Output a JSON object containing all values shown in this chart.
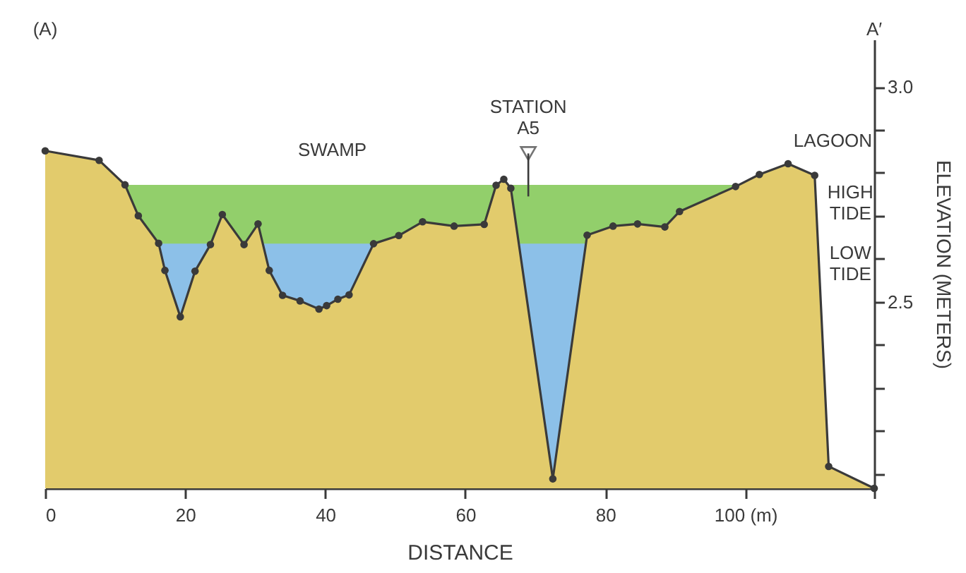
{
  "chart_data": {
    "type": "area",
    "xlabel": "DISTANCE",
    "ylabel": "ELEVATION  (METERS)",
    "series": [
      {
        "color": "#92cf6b",
        "x": [
          11.4,
          98.6
        ],
        "values": [
          2.772,
          2.772
        ]
      },
      {
        "color": "#8cc0e8",
        "x": [
          16.2,
          77.4
        ],
        "values": [
          2.635,
          2.635
        ]
      },
      {
        "color": "#e2cb6c",
        "marker": "circle",
        "x": [
          0,
          7.7,
          11.4,
          13.3,
          16.2,
          17.1,
          19.3,
          21.4,
          23.6,
          25.3,
          28.4,
          30.4,
          32.0,
          33.9,
          36.4,
          39.1,
          40.2,
          41.8,
          43.4,
          46.9,
          50.5,
          53.9,
          58.4,
          62.7,
          64.4,
          65.5,
          66.5,
          72.5,
          77.4,
          81.1,
          84.6,
          88.5,
          90.6,
          98.6,
          102.0,
          106.1,
          109.9,
          111.9,
          118.4
        ],
        "values": [
          2.851,
          2.829,
          2.772,
          2.7,
          2.636,
          2.573,
          2.465,
          2.571,
          2.633,
          2.703,
          2.633,
          2.681,
          2.573,
          2.515,
          2.502,
          2.483,
          2.491,
          2.506,
          2.516,
          2.635,
          2.654,
          2.686,
          2.676,
          2.68,
          2.771,
          2.785,
          2.764,
          2.088,
          2.655,
          2.676,
          2.681,
          2.674,
          2.71,
          2.768,
          2.796,
          2.821,
          2.794,
          2.117,
          2.066
        ]
      }
    ],
    "xlim": [
      0,
      118.4
    ],
    "ylim": [
      2.066,
      3.11
    ],
    "xticks": [
      0,
      20,
      40,
      60,
      80,
      {
        "value": 100,
        "label": "100  (m)"
      },
      {
        "value": 118.4,
        "label": null
      }
    ],
    "yticks": [
      {
        "value": 2.1,
        "label": null
      },
      {
        "value": 2.2,
        "label": null
      },
      {
        "value": 2.3,
        "label": null
      },
      {
        "value": 2.4,
        "label": null
      },
      2.5,
      {
        "value": 2.6,
        "label": null
      },
      {
        "value": 2.7,
        "label": null
      },
      {
        "value": 2.8,
        "label": null
      },
      {
        "value": 2.9,
        "label": null
      },
      {
        "value": 3.0,
        "label": "3.0"
      }
    ],
    "annotations": [
      "(A)",
      "A′",
      "SWAMP",
      "STATION\nA5",
      "LAGOON",
      "HIGH\nTIDE",
      "LOW\nTIDE"
    ],
    "grid": false
  }
}
